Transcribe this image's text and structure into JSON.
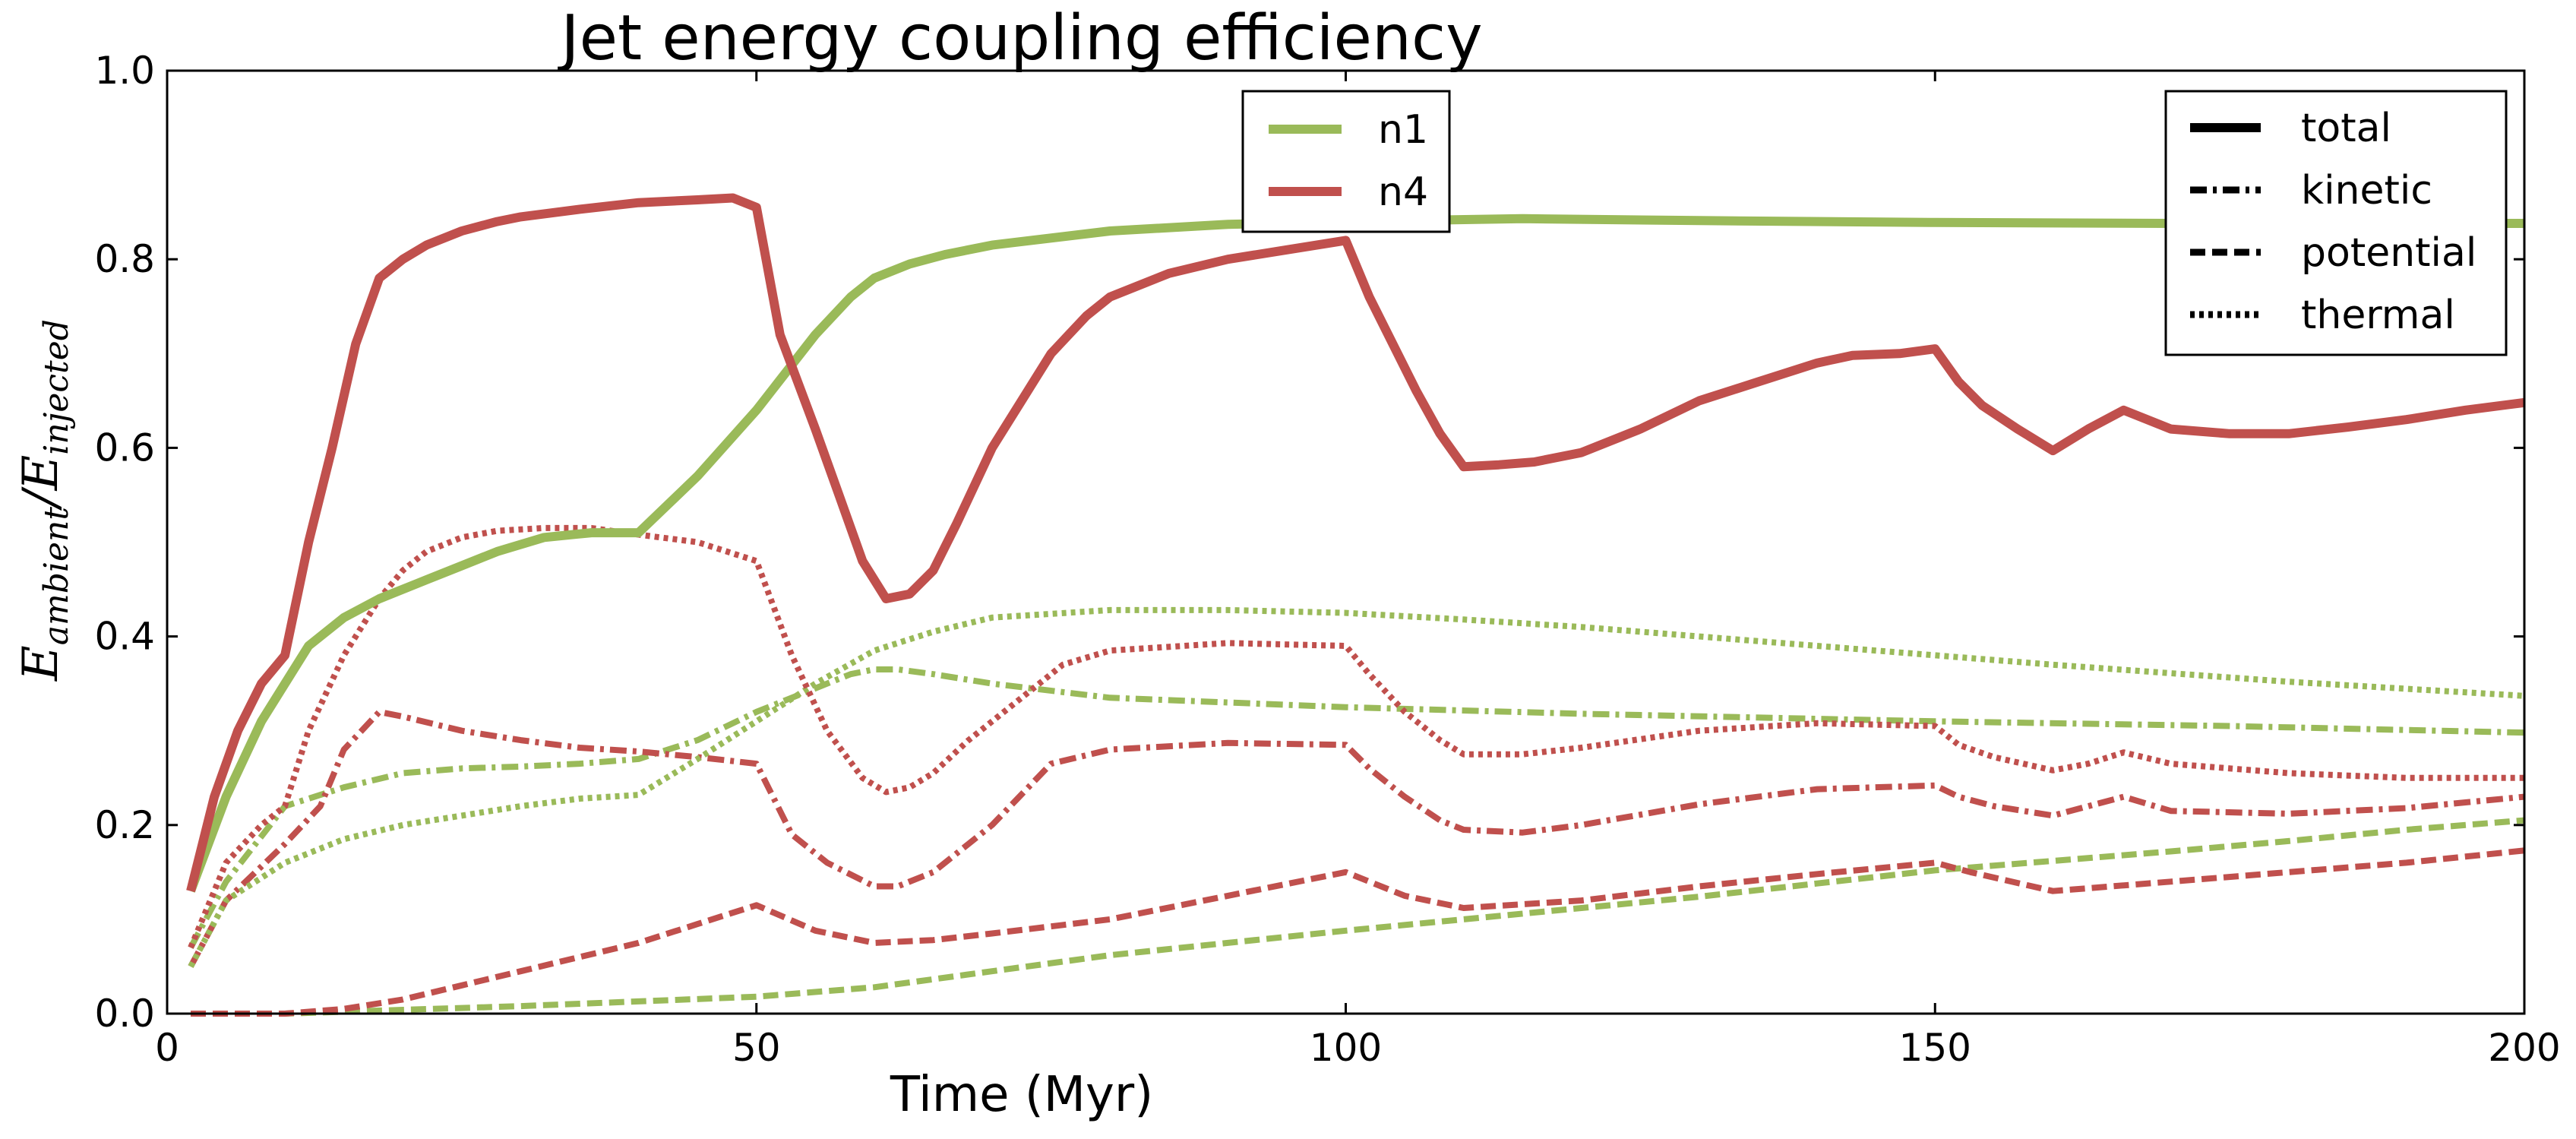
{
  "chart_data": {
    "type": "line",
    "title": "Jet energy coupling efficiency",
    "xlabel": "Time (Myr)",
    "ylabel": {
      "base": "E",
      "numerator_sub": "ambient",
      "slash": "/",
      "denominator_sub": "injected"
    },
    "xlim": [
      0,
      200
    ],
    "ylim": [
      0,
      1
    ],
    "xticks": [
      0,
      50,
      100,
      150,
      200
    ],
    "yticks": [
      0,
      0.2,
      0.4,
      0.6,
      0.8,
      1
    ],
    "xtick_labels": [
      "0",
      "50",
      "100",
      "150",
      "200"
    ],
    "ytick_labels": [
      "0.0",
      "0.2",
      "0.4",
      "0.6",
      "0.8",
      "1.0"
    ],
    "grid": false,
    "colors": {
      "n1": "#9aba59",
      "n4": "#c0504d"
    },
    "legend_models": {
      "placement": "top-center",
      "entries": [
        {
          "label": "n1",
          "color": "#9aba59"
        },
        {
          "label": "n4",
          "color": "#c0504d"
        }
      ]
    },
    "legend_components": {
      "placement": "top-right",
      "entries": [
        {
          "label": "total",
          "dash": "solid"
        },
        {
          "label": "kinetic",
          "dash": "dashdot"
        },
        {
          "label": "potential",
          "dash": "dashed"
        },
        {
          "label": "thermal",
          "dash": "dotted"
        }
      ]
    },
    "series": [
      {
        "model": "n1",
        "component": "total",
        "color": "#9aba59",
        "dash": "solid",
        "x": [
          2,
          5,
          8,
          10,
          12,
          15,
          18,
          22,
          25,
          28,
          32,
          36,
          40,
          45,
          50,
          55,
          58,
          60,
          63,
          66,
          70,
          80,
          90,
          100,
          115,
          130,
          150,
          170,
          185,
          200
        ],
        "y": [
          0.13,
          0.23,
          0.31,
          0.35,
          0.39,
          0.42,
          0.44,
          0.46,
          0.475,
          0.49,
          0.505,
          0.51,
          0.51,
          0.57,
          0.64,
          0.72,
          0.76,
          0.78,
          0.795,
          0.805,
          0.815,
          0.83,
          0.837,
          0.84,
          0.843,
          0.841,
          0.839,
          0.838,
          0.838,
          0.838
        ]
      },
      {
        "model": "n1",
        "component": "kinetic",
        "color": "#9aba59",
        "dash": "dashdot",
        "x": [
          2,
          5,
          10,
          15,
          20,
          25,
          30,
          35,
          40,
          45,
          50,
          55,
          58,
          60,
          62,
          65,
          70,
          80,
          100,
          120,
          150,
          175,
          200
        ],
        "y": [
          0.07,
          0.14,
          0.22,
          0.24,
          0.255,
          0.26,
          0.262,
          0.265,
          0.27,
          0.29,
          0.32,
          0.345,
          0.36,
          0.365,
          0.365,
          0.36,
          0.35,
          0.335,
          0.325,
          0.318,
          0.31,
          0.305,
          0.298
        ]
      },
      {
        "model": "n1",
        "component": "potential",
        "color": "#9aba59",
        "dash": "dashed",
        "x": [
          2,
          10,
          20,
          30,
          40,
          50,
          60,
          70,
          80,
          90,
          100,
          110,
          120,
          130,
          140,
          150,
          160,
          170,
          180,
          190,
          200
        ],
        "y": [
          0.0,
          0.0,
          0.004,
          0.008,
          0.013,
          0.018,
          0.028,
          0.045,
          0.062,
          0.075,
          0.088,
          0.1,
          0.112,
          0.124,
          0.138,
          0.152,
          0.162,
          0.172,
          0.183,
          0.195,
          0.205
        ]
      },
      {
        "model": "n1",
        "component": "thermal",
        "color": "#9aba59",
        "dash": "dotted",
        "x": [
          2,
          5,
          10,
          15,
          20,
          25,
          30,
          35,
          40,
          45,
          50,
          55,
          60,
          65,
          70,
          80,
          90,
          100,
          110,
          120,
          140,
          160,
          180,
          200
        ],
        "y": [
          0.05,
          0.12,
          0.16,
          0.185,
          0.2,
          0.21,
          0.22,
          0.228,
          0.232,
          0.27,
          0.31,
          0.35,
          0.385,
          0.405,
          0.42,
          0.428,
          0.428,
          0.425,
          0.418,
          0.41,
          0.39,
          0.37,
          0.352,
          0.337
        ]
      },
      {
        "model": "n4",
        "component": "total",
        "color": "#c0504d",
        "dash": "solid",
        "x": [
          2,
          4,
          6,
          8,
          10,
          12,
          14,
          16,
          18,
          20,
          22,
          25,
          28,
          30,
          35,
          40,
          45,
          48,
          50,
          52,
          55,
          57,
          59,
          61,
          63,
          65,
          67,
          70,
          73,
          75,
          78,
          80,
          85,
          90,
          95,
          100,
          102,
          104,
          106,
          108,
          110,
          113,
          116,
          120,
          125,
          130,
          135,
          140,
          143,
          147,
          150,
          152,
          154,
          157,
          160,
          163,
          166,
          170,
          175,
          180,
          185,
          190,
          195,
          200
        ],
        "y": [
          0.13,
          0.23,
          0.3,
          0.35,
          0.38,
          0.5,
          0.6,
          0.71,
          0.78,
          0.8,
          0.815,
          0.83,
          0.84,
          0.845,
          0.853,
          0.86,
          0.863,
          0.865,
          0.855,
          0.72,
          0.62,
          0.55,
          0.48,
          0.44,
          0.445,
          0.47,
          0.52,
          0.6,
          0.66,
          0.7,
          0.74,
          0.76,
          0.785,
          0.8,
          0.81,
          0.82,
          0.76,
          0.71,
          0.66,
          0.615,
          0.58,
          0.582,
          0.585,
          0.595,
          0.62,
          0.65,
          0.67,
          0.69,
          0.698,
          0.7,
          0.705,
          0.67,
          0.645,
          0.62,
          0.597,
          0.62,
          0.64,
          0.62,
          0.615,
          0.615,
          0.622,
          0.63,
          0.64,
          0.648
        ]
      },
      {
        "model": "n4",
        "component": "kinetic",
        "color": "#c0504d",
        "dash": "dashdot",
        "x": [
          2,
          5,
          10,
          13,
          15,
          18,
          20,
          25,
          30,
          35,
          40,
          45,
          50,
          53,
          56,
          60,
          62,
          65,
          70,
          75,
          80,
          90,
          100,
          102,
          105,
          108,
          110,
          115,
          120,
          130,
          140,
          150,
          152,
          155,
          160,
          163,
          166,
          170,
          180,
          190,
          200
        ],
        "y": [
          0.05,
          0.12,
          0.18,
          0.22,
          0.28,
          0.32,
          0.315,
          0.3,
          0.29,
          0.282,
          0.278,
          0.272,
          0.265,
          0.19,
          0.16,
          0.135,
          0.135,
          0.15,
          0.2,
          0.265,
          0.28,
          0.287,
          0.285,
          0.26,
          0.23,
          0.205,
          0.195,
          0.192,
          0.2,
          0.222,
          0.238,
          0.242,
          0.23,
          0.22,
          0.21,
          0.22,
          0.23,
          0.215,
          0.212,
          0.218,
          0.23
        ]
      },
      {
        "model": "n4",
        "component": "potential",
        "color": "#c0504d",
        "dash": "dashed",
        "x": [
          2,
          10,
          15,
          20,
          25,
          30,
          35,
          40,
          45,
          50,
          55,
          60,
          65,
          70,
          80,
          90,
          100,
          105,
          110,
          120,
          130,
          140,
          150,
          153,
          160,
          170,
          180,
          190,
          200
        ],
        "y": [
          0.0,
          0.0,
          0.005,
          0.015,
          0.03,
          0.045,
          0.06,
          0.075,
          0.095,
          0.115,
          0.088,
          0.075,
          0.078,
          0.085,
          0.1,
          0.125,
          0.15,
          0.125,
          0.112,
          0.12,
          0.135,
          0.148,
          0.16,
          0.15,
          0.13,
          0.14,
          0.15,
          0.16,
          0.173
        ]
      },
      {
        "model": "n4",
        "component": "thermal",
        "color": "#c0504d",
        "dash": "dotted",
        "x": [
          2,
          5,
          8,
          10,
          12,
          15,
          18,
          20,
          22,
          25,
          28,
          32,
          36,
          40,
          45,
          50,
          53,
          56,
          59,
          61,
          63,
          65,
          68,
          72,
          76,
          80,
          90,
          100,
          102,
          105,
          108,
          110,
          115,
          120,
          130,
          140,
          150,
          152,
          155,
          160,
          163,
          166,
          170,
          180,
          190,
          200
        ],
        "y": [
          0.07,
          0.16,
          0.2,
          0.22,
          0.3,
          0.38,
          0.44,
          0.47,
          0.49,
          0.505,
          0.512,
          0.515,
          0.515,
          0.508,
          0.5,
          0.48,
          0.38,
          0.3,
          0.25,
          0.235,
          0.24,
          0.255,
          0.29,
          0.33,
          0.37,
          0.385,
          0.393,
          0.39,
          0.36,
          0.32,
          0.29,
          0.275,
          0.275,
          0.282,
          0.3,
          0.308,
          0.305,
          0.285,
          0.272,
          0.258,
          0.265,
          0.277,
          0.265,
          0.255,
          0.25,
          0.25
        ]
      }
    ]
  }
}
